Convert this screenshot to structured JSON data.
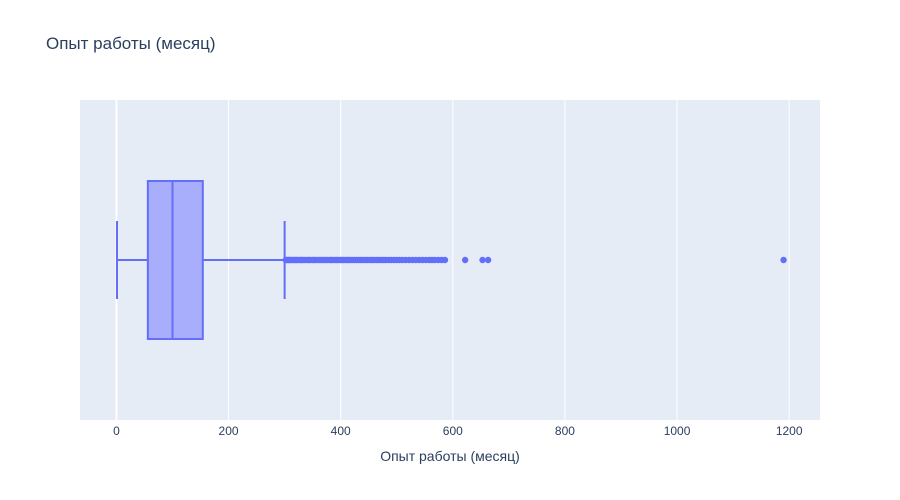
{
  "chart_data": {
    "type": "box",
    "title": "Опыт работы (месяц)",
    "xlabel": "Опыт работы (месяц)",
    "ylabel": "",
    "orientation": "horizontal",
    "xlim": [
      -65,
      1255
    ],
    "xticks": [
      0,
      200,
      400,
      600,
      800,
      1000,
      1200
    ],
    "grid": true,
    "box": {
      "lower_fence": 1,
      "q1": 56,
      "median": 100,
      "q3": 154,
      "upper_fence": 300
    },
    "outliers": [
      302,
      304,
      306,
      308,
      310,
      312,
      315,
      318,
      320,
      322,
      325,
      328,
      330,
      333,
      336,
      340,
      343,
      346,
      350,
      353,
      356,
      360,
      363,
      366,
      370,
      373,
      376,
      380,
      383,
      386,
      390,
      393,
      396,
      400,
      403,
      406,
      410,
      413,
      416,
      420,
      424,
      428,
      432,
      436,
      440,
      444,
      448,
      452,
      456,
      460,
      464,
      468,
      472,
      476,
      480,
      485,
      490,
      495,
      500,
      505,
      510,
      516,
      522,
      528,
      534,
      540,
      546,
      552,
      558,
      563,
      568,
      574,
      580,
      586,
      622,
      653,
      663,
      1190
    ],
    "colors": {
      "box_line": "#636efa",
      "box_fill": "#a8aefb",
      "plot_bg": "#e5ecf6",
      "grid": "#ffffff"
    }
  }
}
